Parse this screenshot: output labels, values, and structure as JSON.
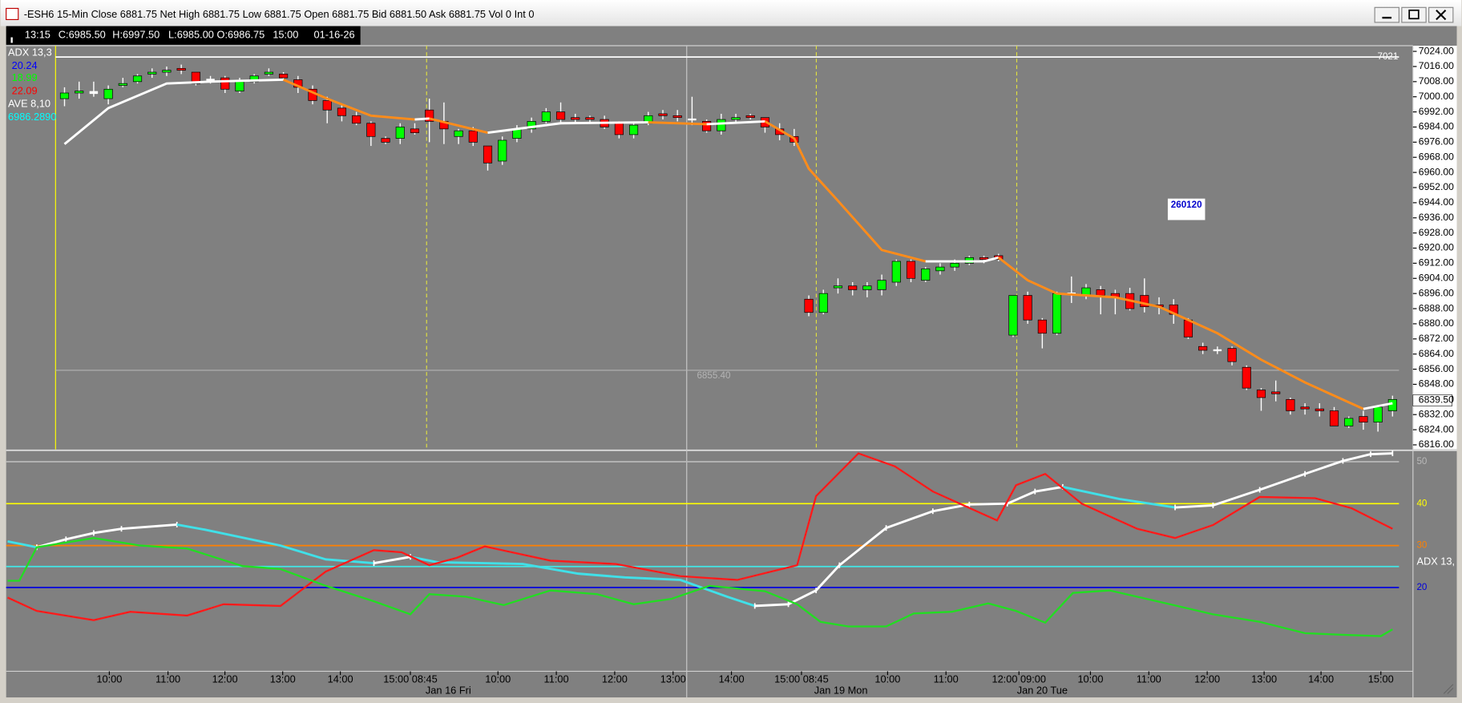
{
  "window": {
    "title": "-ESH6 15-Min Close 6881.75 Net  High 6881.75 Low 6881.75 Open 6881.75 Bid 6881.50 Ask 6881.75 Vol 0 Int 0"
  },
  "info_bar": {
    "time": "13:15",
    "close": "C:6985.50",
    "high": "H:6997.50",
    "low": "L:6985.00",
    "open": "O:6986.75",
    "bar_time": "15:00",
    "date": "01-16-26"
  },
  "legend": {
    "adx": "ADX  13,3",
    "adx_value_1": "20.24",
    "adx_value_2": "18.99",
    "adx_value_3": "22.09",
    "ave": "AVE  8,10",
    "ave_value": "6986.2890"
  },
  "box_label": "260120",
  "chart_data": [
    {
      "type": "candlestick",
      "xlim": [
        -4,
        92.4
      ],
      "ylim": [
        6813.6,
        7027
      ],
      "yticks": [
        {
          "value": 7024,
          "label": "7024.00"
        },
        {
          "value": 7016,
          "label": "7016.00"
        },
        {
          "value": 7008,
          "label": "7008.00"
        },
        {
          "value": 7000,
          "label": "7000.00"
        },
        {
          "value": 6992,
          "label": "6992.00"
        },
        {
          "value": 6984,
          "label": "6984.00"
        },
        {
          "value": 6976,
          "label": "6976.00"
        },
        {
          "value": 6968,
          "label": "6968.00"
        },
        {
          "value": 6960,
          "label": "6960.00"
        },
        {
          "value": 6952,
          "label": "6952.00"
        },
        {
          "value": 6944,
          "label": "6944.00"
        },
        {
          "value": 6936,
          "label": "6936.00"
        },
        {
          "value": 6928,
          "label": "6928.00"
        },
        {
          "value": 6920,
          "label": "6920.00"
        },
        {
          "value": 6912,
          "label": "6912.00"
        },
        {
          "value": 6904,
          "label": "6904.00"
        },
        {
          "value": 6896,
          "label": "6896.00"
        },
        {
          "value": 6888,
          "label": "6888.00"
        },
        {
          "value": 6880,
          "label": "6880.00"
        },
        {
          "value": 6872,
          "label": "6872.00"
        },
        {
          "value": 6864,
          "label": "6864.00"
        },
        {
          "value": 6856,
          "label": "6856.00"
        },
        {
          "value": 6848,
          "label": "6848.00"
        },
        {
          "value": 6840,
          "label": "6840.00"
        },
        {
          "value": 6832,
          "label": "6832.00"
        },
        {
          "value": 6824,
          "label": "6824.00"
        },
        {
          "value": 6816,
          "label": "6816.00"
        }
      ],
      "up_color": "#00ff00",
      "down_color": "#ff0000",
      "doji_color": "#ffffff",
      "open": [
        6999,
        7002,
        7002,
        6999,
        7006,
        7008,
        7012,
        7013,
        7015,
        7013,
        7009,
        7010,
        7003,
        7008,
        7012,
        7012,
        7009,
        7004,
        6998,
        6994,
        6990,
        6986,
        6978,
        6978,
        6983,
        6993,
        6987,
        6979,
        6982,
        6974,
        6966,
        6978,
        6983,
        6987,
        6992,
        6989,
        6989,
        6988,
        6986,
        6980,
        6986,
        6991,
        6990,
        6988,
        6987,
        6982,
        6988,
        6990,
        6989,
        6983,
        6979,
        6893,
        6886,
        6899,
        6900,
        6898,
        6898,
        6902,
        6913,
        6903,
        6908,
        6910,
        6912,
        6915,
        6916,
        6874,
        6895,
        6882,
        6875,
        6896,
        6895,
        6898,
        6896,
        6896,
        6895,
        6890,
        6890,
        6882,
        6868,
        6866,
        6867,
        6857,
        6845,
        6844,
        6840,
        6836,
        6835,
        6834,
        6826,
        6831,
        6828,
        6834
      ],
      "high": [
        7005,
        7008,
        7008,
        7006,
        7010,
        7012,
        7015,
        7016,
        7017,
        7013,
        7011,
        7011,
        7010,
        7012,
        7015,
        7013,
        7011,
        7006,
        7000,
        6996,
        6992,
        6987,
        6979,
        6986,
        6986,
        6999,
        6997,
        6983,
        6984,
        6974,
        6979,
        6985,
        6989,
        6994,
        6997,
        6991,
        6990,
        6990,
        6987,
        6986,
        6992,
        6993,
        6993,
        7000,
        6988,
        6991,
        6991,
        6991,
        6989,
        6986,
        6983,
        6895,
        6898,
        6904,
        6902,
        6902,
        6906,
        6914,
        6914,
        6910,
        6912,
        6914,
        6916,
        6916,
        6917,
        6895,
        6897,
        6883,
        6897,
        6905,
        6901,
        6900,
        6898,
        6899,
        6904,
        6894,
        6893,
        6883,
        6870,
        6868,
        6868,
        6858,
        6846,
        6850,
        6841,
        6838,
        6838,
        6836,
        6831,
        6834,
        6837,
        6842
      ],
      "low": [
        6995,
        6999,
        7000,
        6996,
        7005,
        7007,
        7010,
        7011,
        7012,
        7006,
        7007,
        7002,
        7002,
        7007,
        7011,
        7009,
        7002,
        6996,
        6986,
        6987,
        6985,
        6974,
        6975,
        6975,
        6980,
        6976,
        6975,
        6975,
        6974,
        6961,
        6964,
        6976,
        6981,
        6986,
        6986,
        6986,
        6986,
        6983,
        6978,
        6978,
        6985,
        6988,
        6987,
        6985,
        6981,
        6980,
        6986,
        6988,
        6981,
        6977,
        6974,
        6884,
        6885,
        6896,
        6895,
        6894,
        6895,
        6900,
        6902,
        6902,
        6906,
        6908,
        6911,
        6912,
        6913,
        6873,
        6880,
        6867,
        6874,
        6891,
        6893,
        6885,
        6885,
        6887,
        6886,
        6885,
        6880,
        6872,
        6864,
        6864,
        6858,
        6845,
        6834,
        6839,
        6832,
        6832,
        6831,
        6826,
        6825,
        6824,
        6823,
        6831
      ],
      "close": [
        7002,
        7003,
        7002.5,
        7004,
        7007,
        7011,
        7013,
        7014,
        7014,
        7007,
        7009,
        7004,
        7008,
        7011,
        7013,
        7010,
        7005,
        6998,
        6993,
        6990,
        6986,
        6979,
        6976,
        6984,
        6981,
        6987,
        6983,
        6982,
        6976,
        6965,
        6977,
        6983,
        6987,
        6992,
        6988,
        6988,
        6988,
        6984,
        6980,
        6985,
        6990,
        6990,
        6989,
        6988,
        6982,
        6988,
        6989,
        6989,
        6984,
        6980,
        6976,
        6886,
        6896,
        6900,
        6898,
        6900,
        6903,
        6913,
        6904,
        6909,
        6910,
        6912,
        6915,
        6914,
        6914,
        6895,
        6882,
        6875,
        6896,
        6896,
        6899,
        6895,
        6894,
        6888,
        6889,
        6889,
        6885,
        6873,
        6866,
        6866,
        6860,
        6846,
        6841,
        6843,
        6834,
        6835,
        6834,
        6826,
        6830,
        6828,
        6836,
        6840
      ],
      "average": {
        "up_color": "#ffffff",
        "down_color": "#ff8c1a",
        "x": [
          0,
          3,
          7,
          10,
          15,
          18,
          21,
          24,
          25,
          29,
          34,
          40,
          44,
          48,
          50,
          51,
          53,
          56,
          59,
          63,
          64,
          66,
          68,
          72,
          75,
          79,
          82,
          85,
          89,
          91
        ],
        "values": [
          6975,
          6994,
          7007,
          7008,
          7009,
          6999,
          6990,
          6988,
          6988.5,
          6981,
          6986,
          6986.5,
          6985.5,
          6987,
          6978,
          6962,
          6945,
          6919,
          6913,
          6913,
          6915,
          6903,
          6896,
          6894,
          6889,
          6875,
          6861,
          6849,
          6835,
          6838
        ]
      },
      "annotations": [
        {
          "value": 7021,
          "label": "7021",
          "color": "#ffffff"
        },
        {
          "value": 6855.4,
          "label": "6855.40",
          "color": "#b4b4b4"
        }
      ],
      "last_price": {
        "value": 6839.5,
        "label": "6839.50"
      }
    },
    {
      "type": "line",
      "xlim": [
        -4,
        92.4
      ],
      "ylim": [
        0,
        52.5
      ],
      "levels": [
        {
          "value": 50,
          "label": "50",
          "color": "#b8b8b8"
        },
        {
          "value": 40,
          "label": "40",
          "color": "#ffff00"
        },
        {
          "value": 30,
          "label": "30",
          "color": "#ff8000"
        },
        {
          "value": 25,
          "color": "#40e8e8"
        },
        {
          "value": 20,
          "label": "20",
          "color": "#0000dd"
        }
      ],
      "side_label": "ADX  13,",
      "series": [
        {
          "color": "#ffffff",
          "down_color": "#40e0e8",
          "x": [
            -3.9,
            -1.9,
            0.1,
            2.0,
            3.9,
            7.7,
            9.6,
            14.8,
            17.9,
            21.2,
            23.7,
            25.6,
            28.8,
            31.4,
            35.2,
            38.4,
            42.2,
            45.4,
            47.3,
            49.6,
            51.5,
            53.1,
            56.3,
            59.5,
            62.0,
            64.6,
            66.5,
            68.4,
            72.3,
            76.1,
            78.7,
            81.9,
            85.0,
            87.6,
            89.5,
            91.0
          ],
          "values": [
            31,
            29.6,
            31.5,
            33,
            34,
            35,
            33.8,
            30,
            26.7,
            25.8,
            27.3,
            26,
            25.8,
            25.6,
            23.3,
            22.4,
            21.8,
            17.8,
            15.6,
            16,
            19.3,
            25.3,
            34.2,
            38.2,
            39.8,
            40,
            42.9,
            44,
            41.1,
            39.1,
            39.6,
            43.3,
            47.1,
            50.2,
            51.8,
            52
          ]
        },
        {
          "color": "#ff1a1a",
          "x": [
            -3.9,
            -1.9,
            2.0,
            4.5,
            8.4,
            10.9,
            14.8,
            17.9,
            21.2,
            23.1,
            25.0,
            26.9,
            28.8,
            33.3,
            37.8,
            42.2,
            46.1,
            50.2,
            51.5,
            54.4,
            56.9,
            59.5,
            63.9,
            65.2,
            67.2,
            69.7,
            73.5,
            76.1,
            78.7,
            81.9,
            85.7,
            88.2,
            91.0
          ],
          "values": [
            17.6,
            14.4,
            12.2,
            14.2,
            13.3,
            16,
            15.6,
            23.8,
            28.9,
            28.4,
            25.3,
            27.1,
            29.8,
            26.4,
            25.6,
            22.7,
            21.8,
            25.3,
            41.8,
            52,
            48.9,
            42.9,
            36,
            44.4,
            47.1,
            40,
            34,
            31.8,
            34.9,
            41.6,
            41.3,
            38.9,
            34
          ]
        },
        {
          "color": "#22dd22",
          "x": [
            -3.9,
            -3.1,
            -1.9,
            2.0,
            5.2,
            8.4,
            12.2,
            14.8,
            17.9,
            21.2,
            23.7,
            25.0,
            27.5,
            30.1,
            33.3,
            36.5,
            39.0,
            41.6,
            44.2,
            48.0,
            50.2,
            51.8,
            53.7,
            56.3,
            58.2,
            60.8,
            63.3,
            65.2,
            67.2,
            69.1,
            71.6,
            75.5,
            78.7,
            81.9,
            85.0,
            87.6,
            90.2,
            91.0
          ],
          "values": [
            21.6,
            21.6,
            29.6,
            31.8,
            30,
            29.3,
            25.1,
            24.4,
            20.4,
            16.7,
            13.6,
            18.4,
            17.8,
            15.8,
            19.3,
            18.4,
            16,
            17.3,
            20.4,
            19.1,
            16,
            11.8,
            10.7,
            10.7,
            13.8,
            14.2,
            16.2,
            14.4,
            11.6,
            18.7,
            19.3,
            16.2,
            13.6,
            11.8,
            9.1,
            8.7,
            8.4,
            10
          ]
        }
      ],
      "xticks": [
        {
          "value": 3.07,
          "label": "10:00"
        },
        {
          "value": 7.09,
          "label": "11:00"
        },
        {
          "value": 10.99,
          "label": "12:00"
        },
        {
          "value": 14.95,
          "label": "13:00"
        },
        {
          "value": 18.9,
          "label": "14:00"
        },
        {
          "value": 23.7,
          "label": "15:00 08:45"
        },
        {
          "value": 29.7,
          "label": "10:00"
        },
        {
          "value": 33.7,
          "label": "11:00"
        },
        {
          "value": 37.7,
          "label": "12:00"
        },
        {
          "value": 41.7,
          "label": "13:00"
        },
        {
          "value": 45.7,
          "label": "14:00"
        },
        {
          "value": 50.5,
          "label": "15:00 08:45"
        },
        {
          "value": 56.4,
          "label": "10:00"
        },
        {
          "value": 60.4,
          "label": "11:00"
        },
        {
          "value": 65.4,
          "label": "12:00 09:00"
        },
        {
          "value": 70.3,
          "label": "10:00"
        },
        {
          "value": 74.3,
          "label": "11:00"
        },
        {
          "value": 78.3,
          "label": "12:00"
        },
        {
          "value": 82.2,
          "label": "13:00"
        },
        {
          "value": 86.1,
          "label": "14:00"
        },
        {
          "value": 90.2,
          "label": "15:00"
        }
      ],
      "x_dates": [
        {
          "value": 26.3,
          "label": "Jan 16 Fri"
        },
        {
          "value": 53.2,
          "label": "Jan 19 Mon"
        },
        {
          "value": 67.0,
          "label": "Jan 20 Tue"
        }
      ]
    }
  ]
}
